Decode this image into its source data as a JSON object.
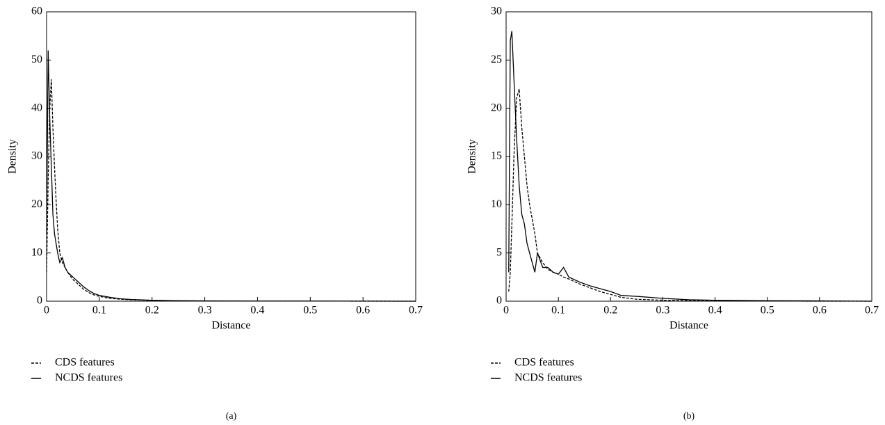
{
  "chart_data": [
    {
      "type": "line",
      "panel_label": "(a)",
      "x_label": "Distance",
      "y_label": "Density",
      "xlim": [
        0,
        0.7
      ],
      "ylim": [
        0,
        60
      ],
      "xticks": [
        0,
        0.1,
        0.2,
        0.3,
        0.4,
        0.5,
        0.6,
        0.7
      ],
      "yticks": [
        0,
        10,
        20,
        30,
        40,
        50,
        60
      ],
      "x": [
        0,
        0.003,
        0.006,
        0.009,
        0.012,
        0.015,
        0.018,
        0.021,
        0.025,
        0.03,
        0.035,
        0.04,
        0.05,
        0.06,
        0.07,
        0.08,
        0.09,
        0.1,
        0.12,
        0.14,
        0.16,
        0.2,
        0.25,
        0.3,
        0.4,
        0.5,
        0.6,
        0.7
      ],
      "series": [
        {
          "name": "CDS features",
          "color": "#000000",
          "dash": true,
          "values": [
            6,
            25,
            40,
            46,
            36,
            28,
            21,
            15,
            10,
            8,
            7,
            6,
            4.5,
            3.5,
            2.5,
            1.8,
            1.3,
            1,
            0.6,
            0.4,
            0.3,
            0.15,
            0.08,
            0.05,
            0.03,
            0.02,
            0.01,
            0
          ]
        },
        {
          "name": "NCDS features",
          "color": "#000000",
          "dash": false,
          "values": [
            14,
            52,
            38,
            28,
            18,
            14,
            12,
            10,
            8,
            9,
            7,
            6,
            5,
            4,
            3,
            2.2,
            1.6,
            1.2,
            0.8,
            0.5,
            0.35,
            0.2,
            0.1,
            0.06,
            0.04,
            0.03,
            0.02,
            0
          ]
        }
      ]
    },
    {
      "type": "line",
      "panel_label": "(b)",
      "x_label": "Distance",
      "y_label": "Density",
      "xlim": [
        0,
        0.7
      ],
      "ylim": [
        0,
        30
      ],
      "xticks": [
        0,
        0.1,
        0.2,
        0.3,
        0.4,
        0.5,
        0.6,
        0.7
      ],
      "yticks": [
        0,
        5,
        10,
        15,
        20,
        25,
        30
      ],
      "x": [
        0.005,
        0.008,
        0.011,
        0.015,
        0.02,
        0.025,
        0.03,
        0.035,
        0.04,
        0.045,
        0.05,
        0.055,
        0.06,
        0.07,
        0.08,
        0.09,
        0.1,
        0.11,
        0.12,
        0.14,
        0.16,
        0.18,
        0.2,
        0.22,
        0.25,
        0.3,
        0.35,
        0.4,
        0.5,
        0.6,
        0.7
      ],
      "series": [
        {
          "name": "CDS features",
          "color": "#000000",
          "dash": true,
          "values": [
            1,
            3,
            8,
            15,
            21,
            22,
            18,
            15,
            12,
            10,
            8.5,
            7,
            5,
            4,
            3.3,
            3,
            2.8,
            2.5,
            2.3,
            1.8,
            1.4,
            1,
            0.7,
            0.4,
            0.2,
            0.1,
            0.05,
            0.05,
            0.02,
            0,
            0
          ]
        },
        {
          "name": "NCDS features",
          "color": "#000000",
          "dash": false,
          "values": [
            3,
            27,
            28,
            23,
            17,
            12,
            9,
            8,
            6,
            5,
            4,
            3,
            5,
            3.5,
            3.5,
            3,
            2.8,
            3.5,
            2.5,
            2,
            1.6,
            1.3,
            1,
            0.6,
            0.5,
            0.3,
            0.15,
            0.1,
            0.05,
            0.03,
            0
          ]
        }
      ]
    }
  ]
}
